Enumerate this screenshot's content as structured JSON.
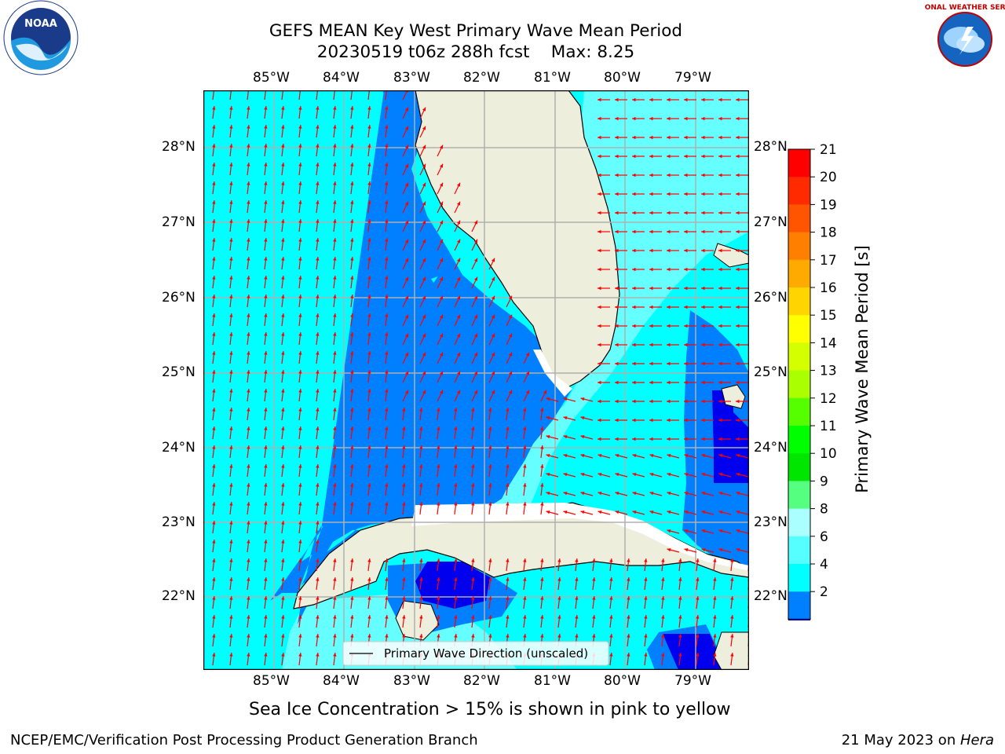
{
  "title": {
    "line1": "GEFS MEAN Key West Primary Wave Mean Period",
    "line2": "20230519 t06z 288h fcst    Max: 8.25"
  },
  "map": {
    "lon_labels": [
      "85°W",
      "84°W",
      "83°W",
      "82°W",
      "81°W",
      "80°W",
      "79°W"
    ],
    "lat_labels": [
      "28°N",
      "27°N",
      "26°N",
      "25°N",
      "24°N",
      "23°N",
      "22°N"
    ],
    "legend_text": "Primary Wave Direction (unscaled)",
    "colors": {
      "land": "#eeeedc",
      "period_4_6": "#00ffff",
      "period_2_4": "#0080ff",
      "period_below_2": "#0000ee",
      "period_6_8": "#66ffff",
      "arrow": "#ff0000",
      "grid": "#b0b0b0"
    }
  },
  "colorbar": {
    "label": "Primary Wave Mean Period [s]",
    "ticks": [
      "21",
      "20",
      "19",
      "18",
      "17",
      "16",
      "15",
      "14",
      "13",
      "12",
      "11",
      "10",
      "9",
      "8",
      "6",
      "4",
      "2"
    ],
    "colors": [
      "#ff0000",
      "#ff2a00",
      "#ff5500",
      "#ff8000",
      "#ffaa00",
      "#ffd400",
      "#ffff00",
      "#d4ff00",
      "#aaff00",
      "#55ff00",
      "#00ff00",
      "#00e600",
      "#55ff80",
      "#aaffff",
      "#55ffff",
      "#00ffff",
      "#0080ff"
    ],
    "extend_color": "#0000ff"
  },
  "note": "Sea Ice Concentration > 15% is shown in pink to yellow",
  "footer": {
    "left": "NCEP/EMC/Verification Post Processing Product Generation Branch",
    "right_date": "21 May 2023 on ",
    "right_host": "Hera"
  },
  "logos": {
    "noaa": "NOAA",
    "nws": "NATIONAL WEATHER SERVICE"
  }
}
